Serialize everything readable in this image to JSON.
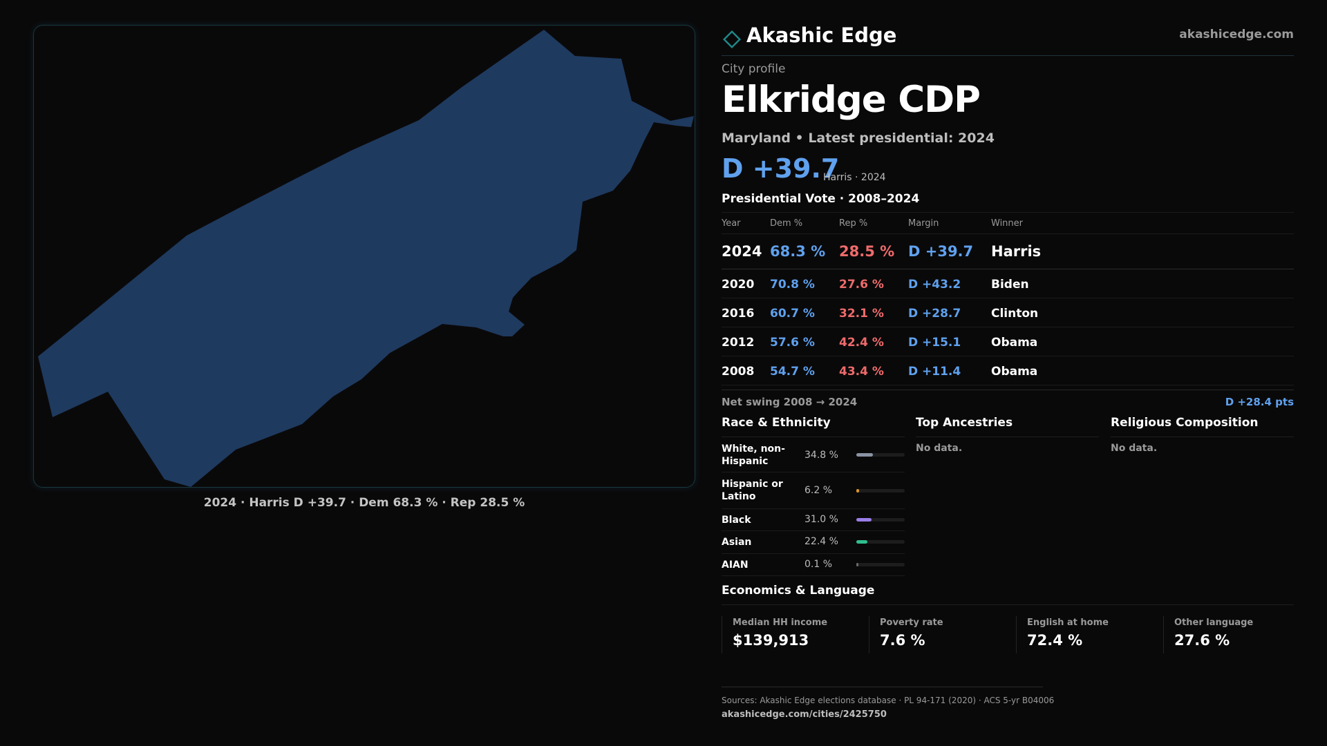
{
  "brand": {
    "name": "Akashic Edge",
    "url": "akashicedge.com",
    "icon": "diamond-outline-icon",
    "accent_color": "#1f8a8a"
  },
  "map": {
    "region_fill": "#1f3a5f",
    "caption": "2024 · Harris D +39.7 · Dem 68.3 % · Rep 28.5 %"
  },
  "profile": {
    "type_label": "City profile",
    "name": "Elkridge CDP",
    "subtitle": "Maryland • Latest presidential: 2024",
    "headline_margin": "D +39.7",
    "headline_note": "Harris · 2024"
  },
  "presidential": {
    "title": "Presidential Vote · 2008–2024",
    "headers": {
      "year": "Year",
      "dem": "Dem %",
      "rep": "Rep %",
      "margin": "Margin",
      "winner": "Winner"
    },
    "rows": [
      {
        "year": "2024",
        "dem": "68.3 %",
        "rep": "28.5 %",
        "margin": "D +39.7",
        "winner": "Harris"
      },
      {
        "year": "2020",
        "dem": "70.8 %",
        "rep": "27.6 %",
        "margin": "D +43.2",
        "winner": "Biden"
      },
      {
        "year": "2016",
        "dem": "60.7 %",
        "rep": "32.1 %",
        "margin": "D +28.7",
        "winner": "Clinton"
      },
      {
        "year": "2012",
        "dem": "57.6 %",
        "rep": "42.4 %",
        "margin": "D +15.1",
        "winner": "Obama"
      },
      {
        "year": "2008",
        "dem": "54.7 %",
        "rep": "43.4 %",
        "margin": "D +11.4",
        "winner": "Obama"
      }
    ],
    "colors": {
      "dem": "#5fa1ee",
      "rep": "#ef6b6b"
    },
    "swing_label": "Net swing 2008 → 2024",
    "swing_value": "D +28.4 pts"
  },
  "race": {
    "title": "Race & Ethnicity",
    "rows": [
      {
        "label": "White, non-Hispanic",
        "pct": "34.8 %",
        "value": 34.8,
        "color": "#8a93a3"
      },
      {
        "label": "Hispanic or Latino",
        "pct": "6.2 %",
        "value": 6.2,
        "color": "#d9962a"
      },
      {
        "label": "Black",
        "pct": "31.0 %",
        "value": 31.0,
        "color": "#9a7ee8"
      },
      {
        "label": "Asian",
        "pct": "22.4 %",
        "value": 22.4,
        "color": "#2fbf8f"
      },
      {
        "label": "AIAN",
        "pct": "0.1 %",
        "value": 0.1,
        "color": "#6b6b6b"
      }
    ]
  },
  "ancestries": {
    "title": "Top Ancestries",
    "empty": "No data."
  },
  "religion": {
    "title": "Religious Composition",
    "empty": "No data."
  },
  "economics": {
    "title": "Economics & Language",
    "cards": [
      {
        "label": "Median HH income",
        "value": "$139,913"
      },
      {
        "label": "Poverty rate",
        "value": "7.6 %"
      },
      {
        "label": "English at home",
        "value": "72.4 %"
      },
      {
        "label": "Other language",
        "value": "27.6 %"
      }
    ]
  },
  "footer": {
    "sources": "Sources: Akashic Edge elections database · PL 94-171 (2020) · ACS 5-yr B04006",
    "url": "akashicedge.com/cities/2425750"
  }
}
